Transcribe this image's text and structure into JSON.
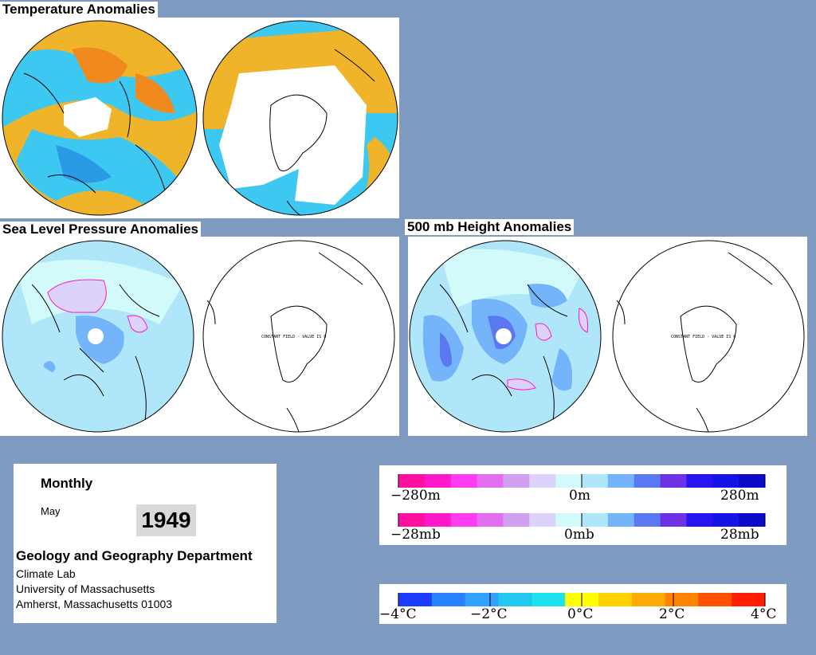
{
  "titles": {
    "temperature": "Temperature Anomalies",
    "slp": "Sea Level Pressure Anomalies",
    "height500": "500 mb Height Anomalies"
  },
  "constant_field_label": "CONSTANT FIELD - VALUE IS 0",
  "info": {
    "period": "Monthly",
    "month": "May",
    "year": "1949",
    "department": "Geology and Geography Department",
    "lab": "Climate Lab",
    "university": "University of Massachusetts",
    "address": "Amherst, Massachusetts 01003"
  },
  "legends": {
    "height": {
      "labels": [
        "−280m",
        "0m",
        "280m"
      ]
    },
    "pressure": {
      "labels": [
        "−28mb",
        "0mb",
        "28mb"
      ]
    },
    "temperature": {
      "labels": [
        "−4°C",
        "−2°C",
        "0°C",
        "2°C",
        "4°C"
      ]
    }
  },
  "colors": {
    "background": "#7f9bc2",
    "anomaly_scale": [
      "#ff0fa0",
      "#ff19c8",
      "#ff3cf0",
      "#e36ef0",
      "#d2a0f0",
      "#dcd2fa",
      "#d2fafa",
      "#afe6fa",
      "#73b4fa",
      "#5a78f0",
      "#6e32e6",
      "#2814f0",
      "#1414e6",
      "#0a0ac8"
    ],
    "temperature_scale": [
      "#1e3cff",
      "#2882ff",
      "#32a0ff",
      "#23c8f0",
      "#1ee1f0",
      "#ffff00",
      "#ffd200",
      "#ffaa00",
      "#ff8200",
      "#ff5000",
      "#ff1e00"
    ]
  }
}
